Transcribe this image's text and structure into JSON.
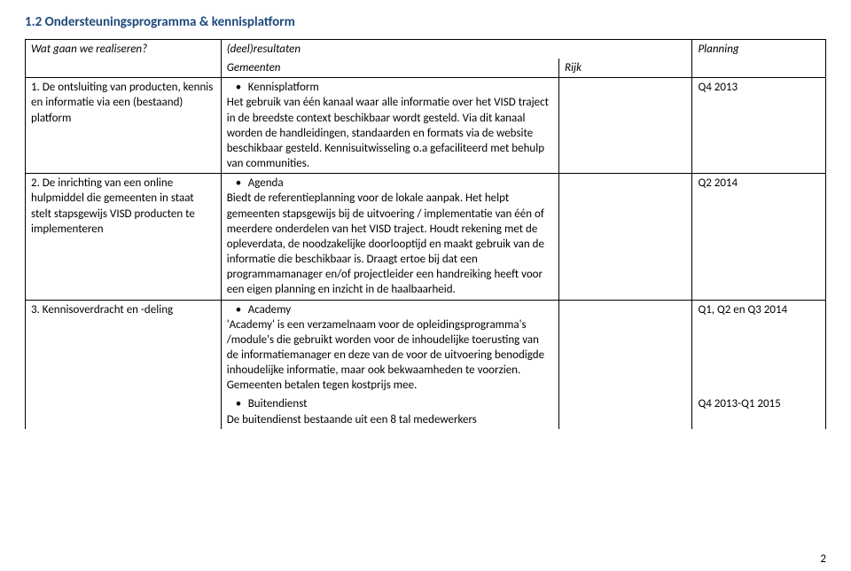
{
  "heading": {
    "text": "1.2 Ondersteuningsprogramma & kennisplatform",
    "color": "#1f497d",
    "fontsize": 15
  },
  "header": {
    "col0": "Wat gaan we realiseren?",
    "col1": "(deel)resultaten",
    "sub_g": "Gemeenten",
    "sub_r": "Rijk",
    "col3": "Planning"
  },
  "rows": [
    {
      "left": "1. De ontsluiting van producten, kennis en informatie via een (bestaand) platform",
      "bullet": "Kennisplatform",
      "body": "Het gebruik van één kanaal waar alle informatie over het VISD traject in de breedste context beschikbaar wordt gesteld. Via dit kanaal worden de handleidingen, standaarden en formats via de website beschikbaar gesteld. Kennisuitwisseling o.a gefaciliteerd met behulp van communities.",
      "plan": "Q4 2013"
    },
    {
      "left": "2. De inrichting van een online hulpmiddel die gemeenten in staat stelt stapsgewijs VISD producten te implementeren",
      "bullet": "Agenda",
      "body": "Biedt de referentieplanning voor de lokale aanpak. Het helpt gemeenten stapsgewijs bij de uitvoering / implementatie van één of meerdere onderdelen van het VISD traject. Houdt rekening met de opleverdata, de noodzakelijke doorlooptijd en maakt gebruik van de informatie die beschikbaar is. Draagt ertoe bij dat een programmamanager en/of projectleider een handreiking heeft voor een eigen planning en inzicht in de haalbaarheid.",
      "plan": "Q2 2014"
    },
    {
      "left": "3. Kennisoverdracht en -deling",
      "bullet": "Academy",
      "body": "'Academy' is een verzamelnaam voor de opleidingsprogramma's /module's die gebruikt worden voor de inhoudelijke toerusting van de informatiemanager en deze van de voor de uitvoering benodigde inhoudelijke informatie, maar ook bekwaamheden te voorzien. Gemeenten betalen tegen kostprijs mee.",
      "plan": "Q1, Q2 en Q3 2014",
      "bullet2": "Buitendienst",
      "body2": "De buitendienst bestaande uit een 8 tal medewerkers",
      "plan2": "Q4 2013-Q1 2015"
    }
  ],
  "page_number": "2"
}
